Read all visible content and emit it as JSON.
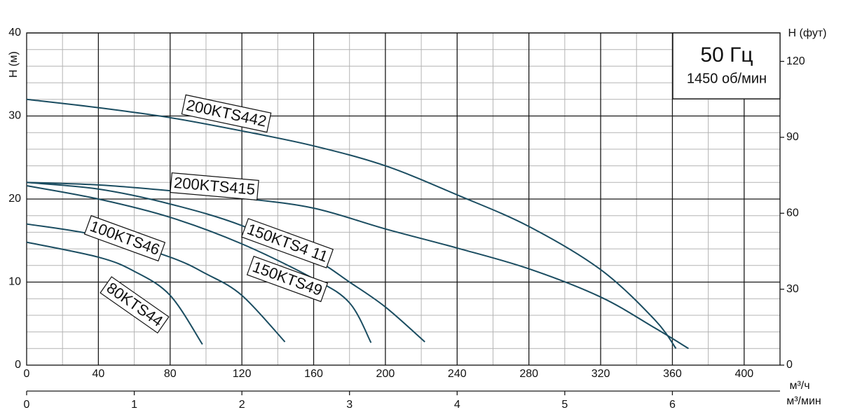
{
  "chart_data": {
    "type": "line",
    "y_label": "H (м)",
    "y2_label": "H (фут)",
    "x_label": "м³/ч",
    "x2_label": "м³/мин",
    "annotations": [
      "50 Гц",
      "1450 об/мин"
    ],
    "xlim": [
      0,
      420
    ],
    "xticks": [
      0,
      40,
      80,
      120,
      160,
      200,
      240,
      280,
      320,
      360,
      400
    ],
    "ylim": [
      0,
      40
    ],
    "yticks": [
      0,
      10,
      20,
      30,
      40
    ],
    "y2lim": [
      0,
      131.23
    ],
    "y2ticks": [
      0,
      30,
      60,
      90,
      120
    ],
    "x2lim": [
      0,
      7
    ],
    "x2ticks": [
      0,
      1,
      2,
      3,
      4,
      5,
      6
    ],
    "grid": true,
    "series": [
      {
        "name": "200KTS442",
        "color": "#1b4d61",
        "x": [
          0,
          40,
          80,
          120,
          160,
          200,
          240,
          280,
          320,
          350,
          362
        ],
        "values": [
          32,
          31,
          29.8,
          28.2,
          26.4,
          24,
          20.5,
          16.7,
          11.5,
          5.5,
          2
        ]
      },
      {
        "name": "200KTS415",
        "color": "#1b4d61",
        "x": [
          0,
          40,
          80,
          120,
          160,
          200,
          240,
          280,
          320,
          350,
          369
        ],
        "values": [
          22,
          21.7,
          21,
          20.1,
          18.9,
          16.4,
          14.1,
          11.6,
          8.2,
          4.5,
          2
        ]
      },
      {
        "name": "150KTS4 11",
        "color": "#1b4d61",
        "x": [
          0,
          40,
          80,
          120,
          160,
          180,
          200,
          222
        ],
        "values": [
          22,
          21.2,
          19.4,
          16.8,
          12.8,
          10,
          7,
          2.8
        ]
      },
      {
        "name": "150KTS49",
        "color": "#1b4d61",
        "x": [
          0,
          40,
          80,
          120,
          160,
          180,
          192
        ],
        "values": [
          21.6,
          20,
          17.8,
          14.6,
          10.4,
          7.5,
          2.7
        ]
      },
      {
        "name": "100KTS46",
        "color": "#1b4d61",
        "x": [
          0,
          40,
          80,
          100,
          120,
          144
        ],
        "values": [
          17,
          15.6,
          13,
          11,
          8.4,
          2.8
        ]
      },
      {
        "name": "80KTS44",
        "color": "#1b4d61",
        "x": [
          0,
          40,
          60,
          80,
          98
        ],
        "values": [
          14.8,
          13,
          11.3,
          8.4,
          2.5
        ]
      }
    ]
  }
}
